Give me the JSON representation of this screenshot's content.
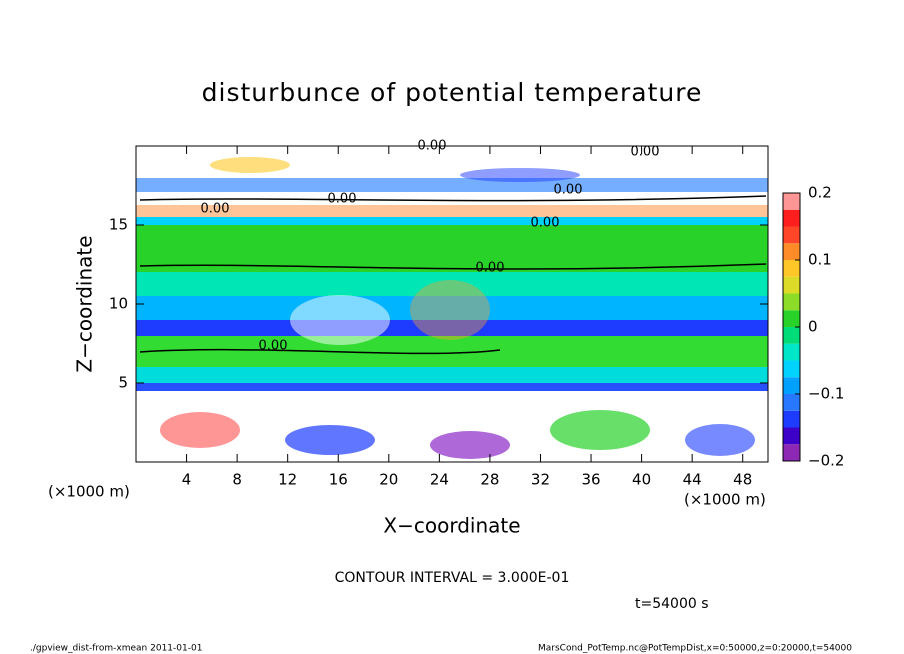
{
  "chart_data": {
    "type": "contour",
    "title": "disturbunce of potential temperature",
    "xlabel": "X−coordinate",
    "ylabel": "Z−coordinate",
    "x_units": "(×1000 m)",
    "y_units": "(×1000 m)",
    "xlim": [
      0,
      50
    ],
    "xticks": [
      4,
      8,
      12,
      16,
      20,
      24,
      28,
      32,
      36,
      40,
      44,
      48
    ],
    "ylim": [
      0,
      20
    ],
    "yticks": [
      5,
      10,
      15
    ],
    "clim": [
      -0.2,
      0.2
    ],
    "cticks": [
      {
        "value": -0.2,
        "label": "−0.2"
      },
      {
        "value": -0.1,
        "label": "−0.1"
      },
      0,
      0.1,
      0.2
    ],
    "colormap": [
      "#8c28b4",
      "#3c00c8",
      "#1e3cff",
      "#2878ff",
      "#00a0ff",
      "#00d2ff",
      "#00e6c8",
      "#00dc78",
      "#28d228",
      "#8cdc28",
      "#dcdc28",
      "#ffc828",
      "#ff8c28",
      "#ff4628",
      "#ff1e1e",
      "#ff9696"
    ],
    "contour_labels": [
      "0.00",
      "0.00",
      "0.00",
      "0.00",
      "0.00",
      "0.00",
      "0.00",
      "0.00"
    ],
    "contour_interval": "CONTOUR INTERVAL = 3.000E-01",
    "time_label": "t=54000 s",
    "footer_left": "./gpview_dist-from-xmean  2011-01-01",
    "footer_right": "MarsCond_PotTemp.nc@PotTempDist,x=0:50000,z=0:20000,t=54000"
  }
}
